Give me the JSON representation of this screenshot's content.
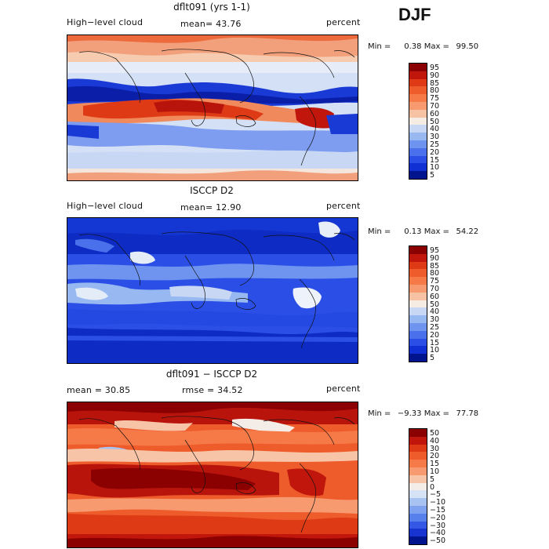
{
  "season": "DJF",
  "panels": [
    {
      "title": "dflt091 (yrs 1-1)",
      "left_label": "High−level cloud",
      "center_label": "mean=  43.76",
      "right_label": "percent",
      "min_label": "Min =",
      "min_value": "0.38",
      "max_label": "Max =",
      "max_value": "99.50",
      "legend_levels": [
        "95",
        "90",
        "85",
        "80",
        "75",
        "70",
        "60",
        "50",
        "40",
        "30",
        "25",
        "20",
        "15",
        "10",
        "5"
      ],
      "legend_colors": [
        "#8b0000",
        "#c0160c",
        "#de3a16",
        "#ee5c2c",
        "#f67a48",
        "#f89a70",
        "#f7c2a4",
        "#f5ece4",
        "#c8d8f4",
        "#98b8f2",
        "#6e94f0",
        "#4a70ec",
        "#2a4ee6",
        "#1030d4",
        "#00148e"
      ]
    },
    {
      "title": "ISCCP D2",
      "left_label": "High−level cloud",
      "center_label": "mean=  12.90",
      "right_label": "percent",
      "min_label": "Min =",
      "min_value": "0.13",
      "max_label": "Max =",
      "max_value": "54.22",
      "legend_levels": [
        "95",
        "90",
        "85",
        "80",
        "75",
        "70",
        "60",
        "50",
        "40",
        "30",
        "25",
        "20",
        "15",
        "10",
        "5"
      ],
      "legend_colors": [
        "#8b0000",
        "#c0160c",
        "#de3a16",
        "#ee5c2c",
        "#f67a48",
        "#f89a70",
        "#f7c2a4",
        "#f5ece4",
        "#c8d8f4",
        "#98b8f2",
        "#6e94f0",
        "#4a70ec",
        "#2a4ee6",
        "#1030d4",
        "#00148e"
      ]
    },
    {
      "title": "dflt091 − ISCCP D2",
      "left_label": "mean =   30.85",
      "center_label": "rmse =   34.52",
      "right_label": "percent",
      "min_label": "Min =",
      "min_value": "−9.33",
      "max_label": "Max =",
      "max_value": "77.78",
      "legend_levels": [
        "50",
        "40",
        "30",
        "20",
        "15",
        "10",
        "5",
        "0",
        "−5",
        "−10",
        "−15",
        "−20",
        "−30",
        "−40",
        "−50"
      ],
      "legend_colors": [
        "#8b0000",
        "#c0160c",
        "#de3a16",
        "#ee5c2c",
        "#f67a48",
        "#f89a70",
        "#f8c4a8",
        "#f4ece6",
        "#d6e2f6",
        "#a8c2f2",
        "#7ea2f0",
        "#5880ec",
        "#3458e4",
        "#1834d0",
        "#00148e"
      ]
    }
  ]
}
